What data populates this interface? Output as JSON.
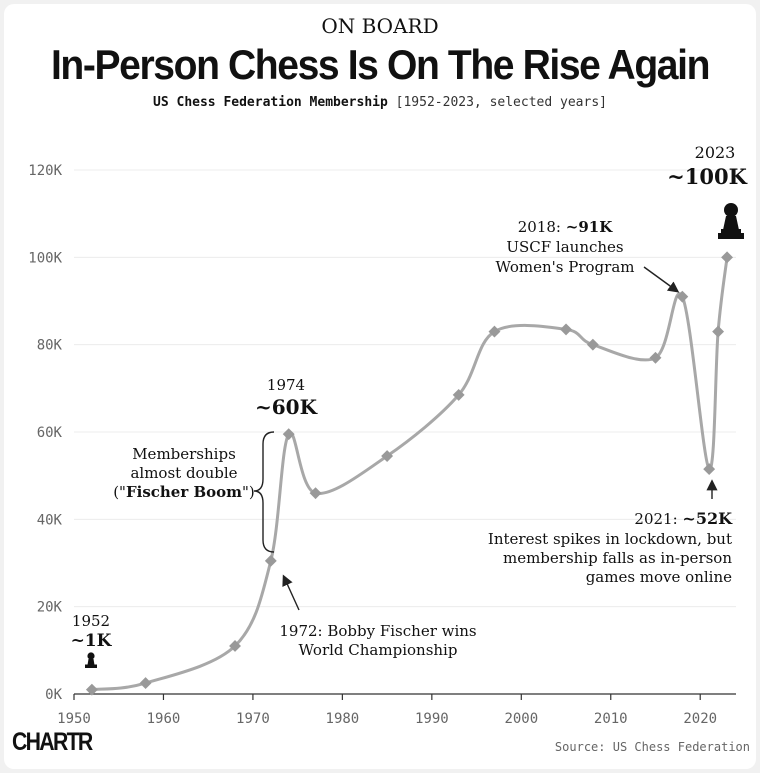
{
  "kicker": "ON BOARD",
  "title": "In-Person Chess Is On The Rise Again",
  "subtitle_main": "US Chess Federation Membership",
  "subtitle_range": "[1952-2023, selected years]",
  "source": "Source: US Chess Federation",
  "logo": "CHARTR",
  "chart_data": {
    "type": "line",
    "title": "In-Person Chess Is On The Rise Again",
    "xlim": [
      1950,
      2024
    ],
    "ylim": [
      0,
      120000
    ],
    "x_ticks": [
      1950,
      1960,
      1970,
      1980,
      1990,
      2000,
      2010,
      2020
    ],
    "y_ticks": [
      0,
      20000,
      40000,
      60000,
      80000,
      100000,
      120000
    ],
    "y_tick_labels": [
      "0K",
      "20K",
      "40K",
      "60K",
      "80K",
      "100K",
      "120K"
    ],
    "grid": "horizontal",
    "line_color": "#a8a8a8",
    "marker_color": "#999999",
    "series": [
      {
        "x": [
          1952,
          1958,
          1968,
          1972,
          1974,
          1977,
          1985,
          1993,
          1997,
          2005,
          2008,
          2015,
          2018,
          2021,
          2022,
          2023
        ],
        "y": [
          1000,
          2500,
          11000,
          30500,
          59500,
          46000,
          54500,
          68500,
          83000,
          83500,
          80000,
          77000,
          91000,
          51500,
          83000,
          100000
        ]
      }
    ],
    "annotations": {
      "a1952": {
        "year": "1952",
        "value": "~1K"
      },
      "a1974": {
        "year": "1974",
        "value": "~60K"
      },
      "a2023": {
        "year": "2023",
        "value": "~100K"
      },
      "a1972": {
        "line1": "1972: Bobby Fischer wins",
        "line2": "World Championship"
      },
      "boom": {
        "line1": "Memberships",
        "line2": "almost double",
        "line3_pre": "(\"",
        "line3_bold": "Fischer Boom",
        "line3_post": "\")"
      },
      "a2018": {
        "label": "2018: ",
        "value": "~91K",
        "line2": "USCF launches",
        "line3": "Women's Program"
      },
      "a2021": {
        "label": "2021: ",
        "value": "~52K",
        "line2": "Interest spikes in lockdown, but",
        "line3": "membership falls as in-person",
        "line4": "games move online"
      }
    }
  }
}
